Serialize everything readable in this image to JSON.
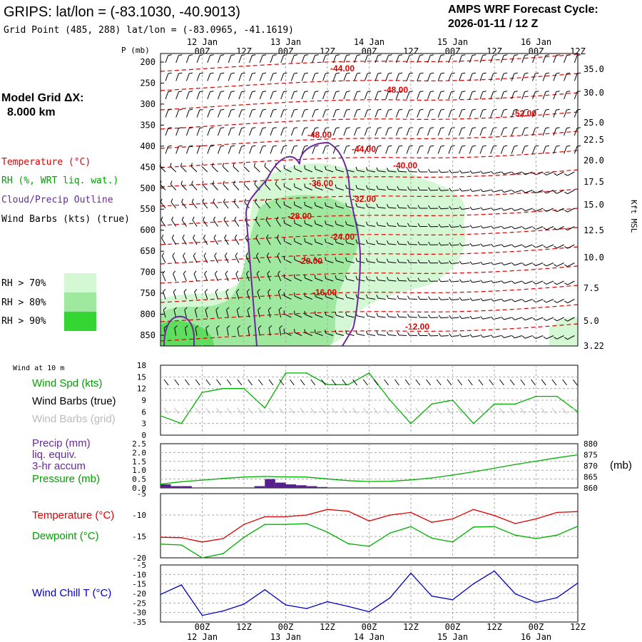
{
  "header": {
    "title": "GRIPS:  lat/lon = (-83.1030, -40.9013)",
    "grid_point": "Grid Point (485, 288) lat/lon = (-83.0965, -41.1619)",
    "cycle_title": "AMPS WRF Forecast Cycle:",
    "cycle_value": "2026-01-11 / 12  Z"
  },
  "model_grid": {
    "label": "Model Grid ΔX:",
    "value": "8.000 km"
  },
  "legend": {
    "temperature": "Temperature (°C)",
    "rh": "RH (%, WRT liq. wat.)",
    "cloud": "Cloud/Precip Outline",
    "wind": "Wind Barbs (kts) (true)",
    "rh70": "RH > 70%",
    "rh80": "RH > 80%",
    "rh90": "RH > 90%",
    "colors": {
      "temp": "#e00000",
      "rh": "#00a000",
      "cloud": "#6a2a9a",
      "rh70": "#d4f8d4",
      "rh80": "#9fe89f",
      "rh90": "#33d633"
    }
  },
  "time_axis": {
    "hour_labels": [
      "00Z",
      "12Z",
      "00Z",
      "12Z",
      "00Z",
      "12Z",
      "00Z",
      "12Z",
      "00Z",
      "12Z"
    ],
    "day_labels": [
      "12 Jan",
      "13 Jan",
      "14 Jan",
      "15 Jan",
      "16 Jan"
    ]
  },
  "sounding": {
    "p_label": "P (mb)",
    "pressure_ticks": [
      "200",
      "250",
      "300",
      "350",
      "400",
      "450",
      "500",
      "550",
      "600",
      "650",
      "700",
      "750",
      "800",
      "850"
    ],
    "height_ticks": [
      "35.0",
      "30.0",
      "25.0",
      "22.5",
      "20.0",
      "17.5",
      "15.0",
      "12.5",
      "10.0",
      "7.5",
      "5.0",
      "3.22"
    ],
    "height_unit": "Kft MSL",
    "isotherm_labels": [
      "-44.00",
      "-48.00",
      "-52.00",
      "-48.00",
      "-44.00",
      "-40.00",
      "-36.00",
      "-32.00",
      "-28.00",
      "-24.00",
      "-20.00",
      "-16.00",
      "-12.00"
    ]
  },
  "chart_data": [
    {
      "type": "line",
      "title": "Wind at 10 m",
      "labels": {
        "speed": "Wind Spd (kts)",
        "barbs_true": "Wind Barbs (true)",
        "barbs_grid": "Wind Barbs (grid)"
      },
      "y_ticks": [
        "18",
        "15",
        "12",
        "9",
        "6",
        "3",
        "0"
      ],
      "ylim": [
        0,
        18
      ],
      "x_hours": [
        0,
        6,
        12,
        18,
        24,
        30,
        36,
        42,
        48,
        54,
        60,
        66,
        72,
        78,
        84,
        90,
        96,
        102,
        108,
        114,
        120
      ],
      "series": [
        {
          "name": "Wind Spd (kts)",
          "color": "#00b000",
          "values": [
            5,
            3,
            11,
            12,
            12,
            7,
            16,
            16,
            13,
            13,
            16,
            9,
            3,
            8,
            9,
            3,
            8,
            8,
            10,
            10,
            6
          ]
        }
      ]
    },
    {
      "type": "bar+line",
      "labels": {
        "precip": "Precip (mm)",
        "liq": "liq. equiv.",
        "accum": "3-hr accum",
        "pressure": "Pressure (mb)",
        "right_unit": "(mb)"
      },
      "y_left_ticks": [
        "2.5",
        "2.0",
        "1.5",
        "1.0",
        "0.5",
        "0.0"
      ],
      "y_right_ticks": [
        "880",
        "875",
        "870",
        "865",
        "860"
      ],
      "ylim_left": [
        0,
        2.5
      ],
      "ylim_right": [
        860,
        880
      ],
      "precip_bars": [
        {
          "hour": 0,
          "value": 0.2
        },
        {
          "hour": 3,
          "value": 0.1
        },
        {
          "hour": 6,
          "value": 0.1
        },
        {
          "hour": 27,
          "value": 0.1
        },
        {
          "hour": 30,
          "value": 0.5
        },
        {
          "hour": 33,
          "value": 0.3
        },
        {
          "hour": 36,
          "value": 0.2
        },
        {
          "hour": 39,
          "value": 0.15
        },
        {
          "hour": 42,
          "value": 0.1
        },
        {
          "hour": 45,
          "value": 0.05
        }
      ],
      "x_hours": [
        0,
        6,
        12,
        18,
        24,
        30,
        36,
        42,
        48,
        54,
        60,
        66,
        72,
        78,
        84,
        90,
        96,
        102,
        108,
        114,
        120
      ],
      "series": [
        {
          "name": "Pressure (mb)",
          "color": "#00b000",
          "values": [
            861.7,
            862.8,
            863.5,
            864.3,
            864.9,
            865.2,
            865.0,
            864.9,
            864.1,
            863.3,
            862.9,
            863.0,
            863.6,
            864.5,
            865.8,
            867.3,
            868.9,
            870.6,
            872.1,
            873.6,
            875.0
          ]
        }
      ]
    },
    {
      "type": "line",
      "labels": {
        "temperature": "Temperature (°C)",
        "dewpoint": "Dewpoint (°C)"
      },
      "y_ticks": [
        "-5",
        "-10",
        "-15",
        "-20"
      ],
      "ylim": [
        -20,
        -5
      ],
      "x_hours": [
        0,
        6,
        12,
        18,
        24,
        30,
        36,
        42,
        48,
        54,
        60,
        66,
        72,
        78,
        84,
        90,
        96,
        102,
        108,
        114,
        120
      ],
      "series": [
        {
          "name": "Temperature (°C)",
          "color": "#e00000",
          "values": [
            -15.2,
            -15.3,
            -16.3,
            -15.5,
            -12.2,
            -10.4,
            -10.4,
            -10.0,
            -8.7,
            -9.1,
            -11.4,
            -10.0,
            -9.4,
            -11.7,
            -10.9,
            -8.7,
            -10.1,
            -12.0,
            -10.9,
            -9.4,
            -9.2
          ]
        },
        {
          "name": "Dewpoint (°C)",
          "color": "#00b000",
          "values": [
            -16.8,
            -17.0,
            -20.0,
            -19.0,
            -15.2,
            -12.2,
            -12.2,
            -12.0,
            -14.0,
            -16.7,
            -17.3,
            -14.2,
            -12.7,
            -15.4,
            -16.3,
            -12.8,
            -12.7,
            -14.7,
            -15.5,
            -14.7,
            -12.6
          ]
        }
      ]
    },
    {
      "type": "line",
      "labels": {
        "windchill": "Wind Chill T (°C)"
      },
      "y_ticks": [
        "-5",
        "-10",
        "-15",
        "-20",
        "-25",
        "-30",
        "-35"
      ],
      "ylim": [
        -35,
        -5
      ],
      "x_hours": [
        0,
        6,
        12,
        18,
        24,
        30,
        36,
        42,
        48,
        54,
        60,
        66,
        72,
        78,
        84,
        90,
        96,
        102,
        108,
        114,
        120
      ],
      "series": [
        {
          "name": "Wind Chill T (°C)",
          "color": "#0000c0",
          "values": [
            -20.5,
            -15.5,
            -31.5,
            -29.2,
            -25.6,
            -18.0,
            -26.0,
            -27.9,
            -24.3,
            -26.8,
            -29.6,
            -22.3,
            -9.3,
            -21.4,
            -23.3,
            -14.9,
            -8.2,
            -20.2,
            -24.7,
            -22.2,
            -14.5
          ]
        }
      ]
    }
  ]
}
